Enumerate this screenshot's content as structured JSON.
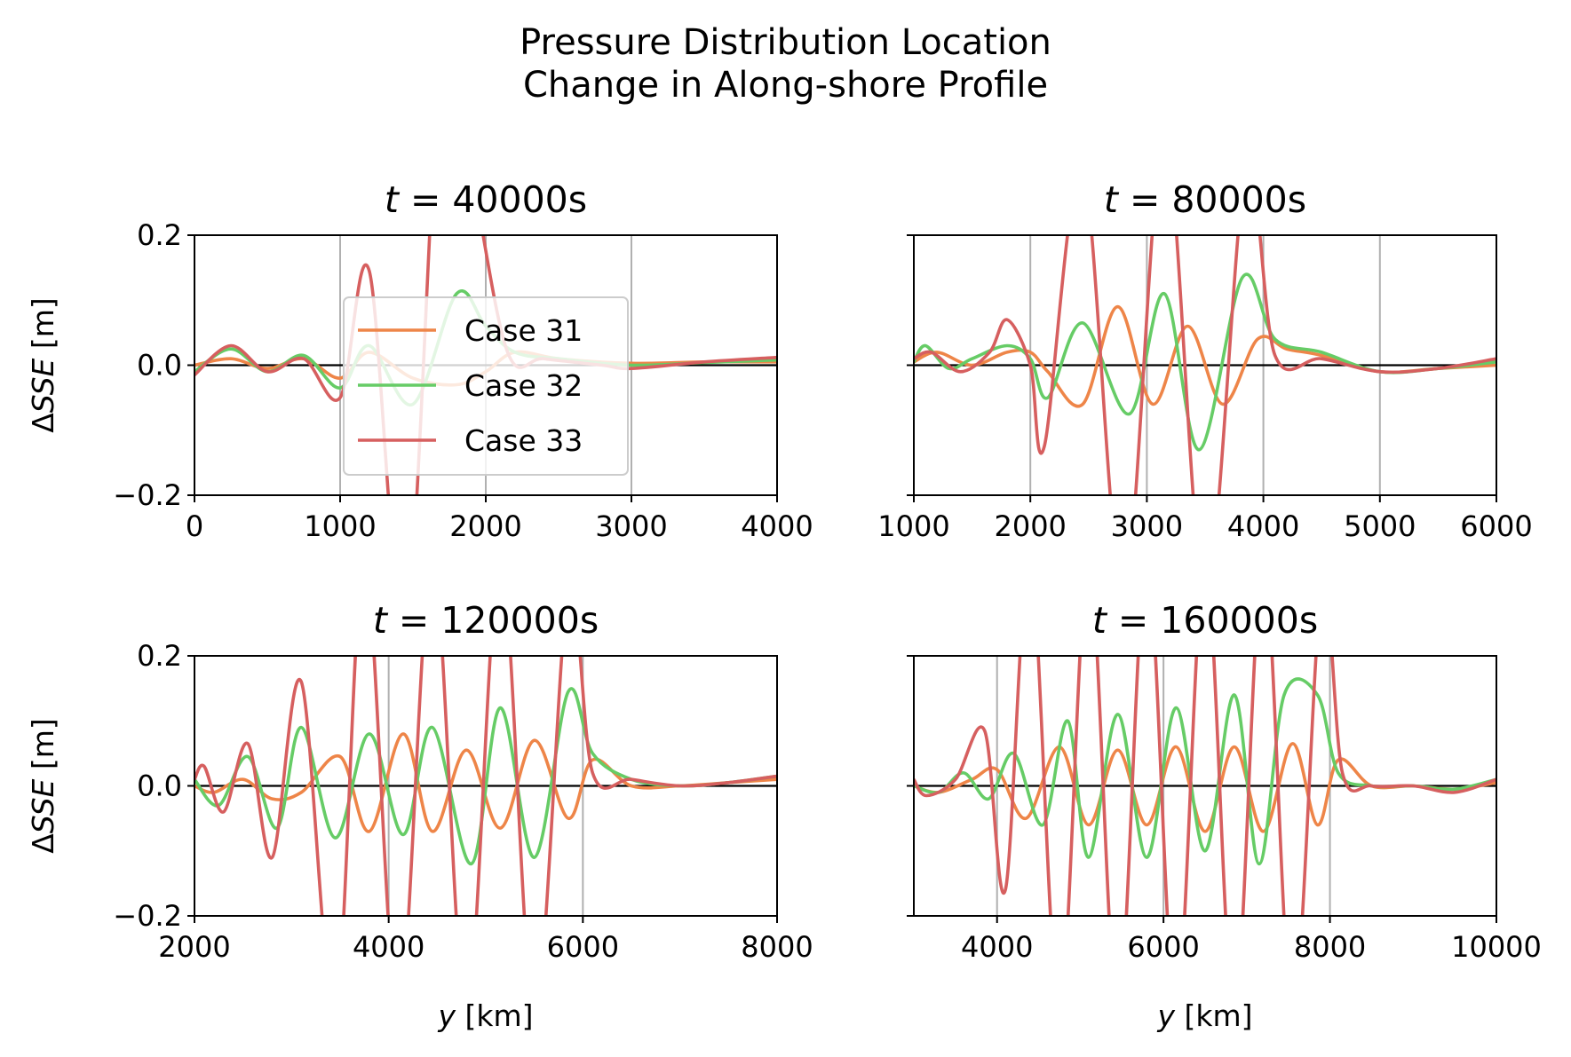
{
  "figure": {
    "title_line1": "Pressure Distribution Location",
    "title_line2": "Change in Along-shore Profile"
  },
  "colors": {
    "case31": "#ee8548",
    "case32": "#66cc66",
    "case33": "#d65f5f",
    "grid": "#b0b0b0",
    "zero_line": "#000000"
  },
  "chart_data": [
    {
      "type": "line",
      "title": "t = 40000s",
      "title_var": "t",
      "title_rest": " = 40000s",
      "ylabel": "ΔSSE [m]",
      "xlabel": "",
      "xlim": [
        0,
        4000
      ],
      "ylim": [
        -0.2,
        0.2
      ],
      "xticks": [
        0,
        1000,
        2000,
        3000,
        4000
      ],
      "yticks": [
        -0.2,
        0.0,
        0.2
      ],
      "ytick_labels": [
        "−0.2",
        "0.0",
        "0.2"
      ],
      "grid_x": true,
      "legend": {
        "placement": "center-left",
        "entries": [
          "Case 31",
          "Case 32",
          "Case 33"
        ]
      },
      "series": [
        {
          "name": "Case 31",
          "color": "#ee8548",
          "x": [
            0,
            250,
            500,
            750,
            1000,
            1200,
            1500,
            1800,
            2000,
            2200,
            2500,
            3000,
            3500,
            4000
          ],
          "y": [
            0.0,
            0.01,
            -0.005,
            0.01,
            -0.02,
            0.02,
            -0.02,
            -0.03,
            -0.01,
            0.02,
            0.01,
            0.003,
            0.005,
            0.005
          ]
        },
        {
          "name": "Case 32",
          "color": "#66cc66",
          "x": [
            0,
            250,
            500,
            750,
            1000,
            1200,
            1500,
            1800,
            2000,
            2200,
            2500,
            3000,
            3500,
            4000
          ],
          "y": [
            -0.01,
            0.025,
            -0.01,
            0.015,
            -0.035,
            0.03,
            -0.06,
            0.11,
            0.06,
            0.02,
            0.01,
            0.0,
            0.004,
            0.008
          ]
        },
        {
          "name": "Case 33",
          "color": "#d65f5f",
          "x": [
            0,
            250,
            500,
            750,
            1000,
            1200,
            1450,
            1700,
            1900,
            2150,
            2400,
            2800,
            3000,
            3500,
            4000
          ],
          "y": [
            -0.015,
            0.03,
            -0.01,
            0.01,
            -0.05,
            0.145,
            -0.4,
            0.5,
            0.3,
            0.02,
            0.01,
            0.0,
            -0.005,
            0.005,
            0.012
          ]
        }
      ]
    },
    {
      "type": "line",
      "title": "t = 80000s",
      "title_var": "t",
      "title_rest": " = 80000s",
      "ylabel": "",
      "xlabel": "",
      "xlim": [
        1000,
        6000
      ],
      "ylim": [
        -0.2,
        0.2
      ],
      "xticks": [
        1000,
        2000,
        3000,
        4000,
        5000,
        6000
      ],
      "yticks": [
        -0.2,
        0.0,
        0.2
      ],
      "grid_x": true,
      "series": [
        {
          "name": "Case 31",
          "color": "#ee8548",
          "x": [
            1000,
            1200,
            1500,
            1800,
            2000,
            2150,
            2450,
            2750,
            3050,
            3350,
            3650,
            3950,
            4200,
            4500,
            5000,
            5500,
            6000
          ],
          "y": [
            0.005,
            0.02,
            0.0,
            0.02,
            0.02,
            -0.01,
            -0.06,
            0.09,
            -0.06,
            0.06,
            -0.06,
            0.04,
            0.025,
            0.015,
            -0.01,
            -0.005,
            0.0
          ]
        },
        {
          "name": "Case 32",
          "color": "#66cc66",
          "x": [
            1000,
            1100,
            1300,
            1500,
            1800,
            2000,
            2150,
            2450,
            2850,
            3150,
            3450,
            3820,
            4100,
            4500,
            5000,
            5500,
            6000
          ],
          "y": [
            0.005,
            0.03,
            -0.005,
            0.01,
            0.03,
            0.01,
            -0.05,
            0.065,
            -0.075,
            0.11,
            -0.13,
            0.135,
            0.04,
            0.02,
            -0.01,
            -0.005,
            0.005
          ]
        },
        {
          "name": "Case 33",
          "color": "#d65f5f",
          "x": [
            1000,
            1150,
            1400,
            1650,
            1800,
            2000,
            2120,
            2450,
            2800,
            3150,
            3500,
            3850,
            4100,
            4500,
            5000,
            5500,
            6000
          ],
          "y": [
            0.01,
            0.02,
            -0.01,
            0.02,
            0.07,
            0.0,
            -0.125,
            0.3,
            -0.35,
            0.35,
            -0.35,
            0.3,
            0.015,
            0.01,
            -0.01,
            -0.005,
            0.01
          ]
        }
      ]
    },
    {
      "type": "line",
      "title": "t = 120000s",
      "title_var": "t",
      "title_rest": " = 120000s",
      "ylabel": "ΔSSE [m]",
      "xlabel": "y [km]",
      "xlim": [
        2000,
        8000
      ],
      "ylim": [
        -0.2,
        0.2
      ],
      "xticks": [
        2000,
        4000,
        6000,
        8000
      ],
      "yticks": [
        -0.2,
        0.0,
        0.2
      ],
      "ytick_labels": [
        "−0.2",
        "0.0",
        "0.2"
      ],
      "grid_x": true,
      "series": [
        {
          "name": "Case 31",
          "color": "#ee8548",
          "x": [
            2000,
            2200,
            2500,
            2800,
            3100,
            3500,
            3800,
            4150,
            4450,
            4800,
            5150,
            5500,
            5850,
            6100,
            6500,
            7000,
            7500,
            8000
          ],
          "y": [
            0.0,
            -0.01,
            0.01,
            -0.02,
            -0.01,
            0.045,
            -0.07,
            0.08,
            -0.07,
            0.055,
            -0.065,
            0.07,
            -0.05,
            0.04,
            0.0,
            0.0,
            0.005,
            0.01
          ]
        },
        {
          "name": "Case 32",
          "color": "#66cc66",
          "x": [
            2000,
            2250,
            2550,
            2850,
            3100,
            3450,
            3800,
            4150,
            4450,
            4850,
            5150,
            5500,
            5850,
            6100,
            6500,
            7000,
            7500,
            8000
          ],
          "y": [
            0.01,
            -0.03,
            0.045,
            -0.065,
            0.09,
            -0.08,
            0.08,
            -0.075,
            0.09,
            -0.12,
            0.12,
            -0.11,
            0.145,
            0.05,
            0.01,
            0.0,
            0.005,
            0.015
          ]
        },
        {
          "name": "Case 33",
          "color": "#d65f5f",
          "x": [
            2000,
            2100,
            2300,
            2550,
            2800,
            3100,
            3450,
            3750,
            4100,
            4450,
            4800,
            5150,
            5500,
            5850,
            6100,
            6500,
            7000,
            7500,
            8000
          ],
          "y": [
            0.01,
            0.03,
            -0.04,
            0.065,
            -0.11,
            0.16,
            -0.35,
            0.35,
            -0.35,
            0.35,
            -0.35,
            0.35,
            -0.35,
            0.3,
            0.02,
            0.01,
            0.0,
            0.005,
            0.015
          ]
        }
      ]
    },
    {
      "type": "line",
      "title": "t = 160000s",
      "title_var": "t",
      "title_rest": " = 160000s",
      "ylabel": "",
      "xlabel": "y [km]",
      "xlim": [
        3000,
        10000
      ],
      "ylim": [
        -0.2,
        0.2
      ],
      "xticks": [
        4000,
        6000,
        8000,
        10000
      ],
      "yticks": [
        -0.2,
        0.0,
        0.2
      ],
      "grid_x": true,
      "series": [
        {
          "name": "Case 31",
          "color": "#ee8548",
          "x": [
            3000,
            3300,
            3700,
            4000,
            4350,
            4750,
            5100,
            5450,
            5800,
            6150,
            6500,
            6850,
            7200,
            7550,
            7850,
            8100,
            8500,
            9000,
            9500,
            10000
          ],
          "y": [
            0.0,
            -0.01,
            0.01,
            0.025,
            -0.05,
            0.06,
            -0.06,
            0.055,
            -0.06,
            0.06,
            -0.07,
            0.06,
            -0.07,
            0.065,
            -0.06,
            0.04,
            0.0,
            0.0,
            -0.005,
            0.005
          ]
        },
        {
          "name": "Case 32",
          "color": "#66cc66",
          "x": [
            3000,
            3300,
            3600,
            3900,
            4200,
            4550,
            4850,
            5100,
            5450,
            5800,
            6150,
            6500,
            6850,
            7150,
            7450,
            7850,
            8100,
            8500,
            9000,
            9500,
            10000
          ],
          "y": [
            0.0,
            -0.01,
            0.02,
            -0.02,
            0.05,
            -0.06,
            0.1,
            -0.11,
            0.11,
            -0.11,
            0.12,
            -0.1,
            0.14,
            -0.12,
            0.14,
            0.14,
            0.02,
            0.0,
            0.0,
            -0.005,
            0.01
          ]
        },
        {
          "name": "Case 33",
          "color": "#d65f5f",
          "x": [
            3000,
            3150,
            3500,
            3850,
            4100,
            4400,
            4750,
            5100,
            5450,
            5800,
            6150,
            6500,
            6850,
            7200,
            7550,
            7900,
            8150,
            8500,
            9000,
            9500,
            10000
          ],
          "y": [
            0.01,
            -0.015,
            0.01,
            0.085,
            -0.16,
            0.35,
            -0.35,
            0.35,
            -0.35,
            0.35,
            -0.35,
            0.35,
            -0.35,
            0.35,
            -0.35,
            0.3,
            0.02,
            0.0,
            0.0,
            -0.01,
            0.01
          ]
        }
      ]
    }
  ]
}
